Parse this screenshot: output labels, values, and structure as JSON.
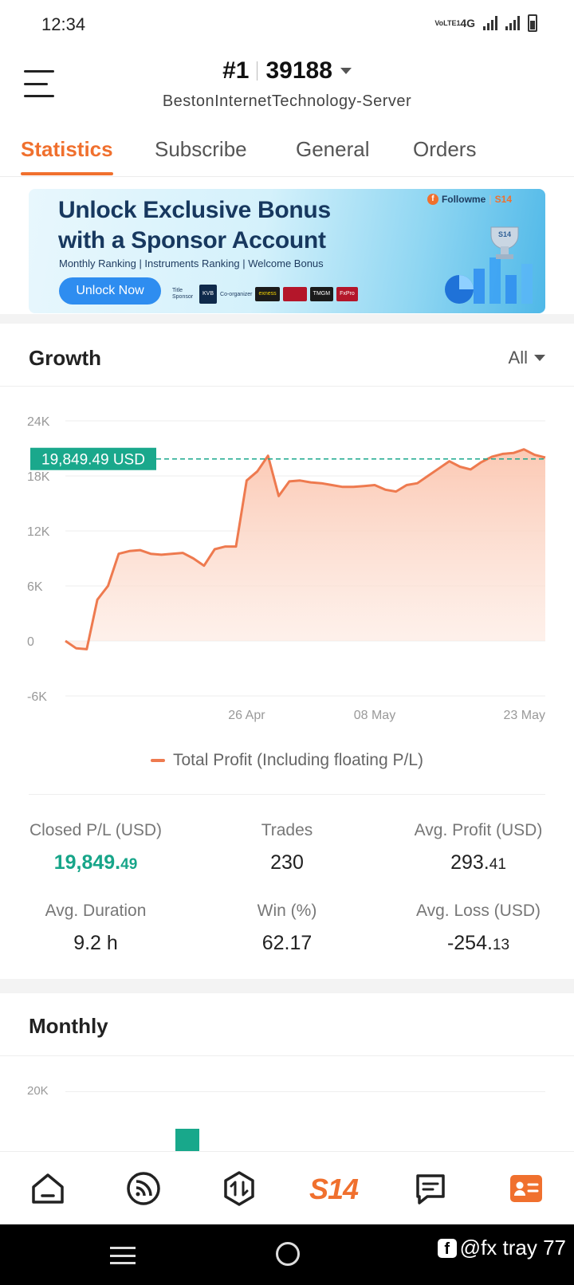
{
  "status_bar": {
    "time": "12:34",
    "network_label": "4G",
    "volte_label": "VoLTE1"
  },
  "header": {
    "account_rank": "#1",
    "account_id": "39188",
    "server": "BestonInternetTechnology-Server"
  },
  "tabs": [
    {
      "label": "Statistics",
      "active": true
    },
    {
      "label": "Subscribe",
      "active": false
    },
    {
      "label": "General",
      "active": false
    },
    {
      "label": "Orders",
      "active": false
    }
  ],
  "banner": {
    "headline_line1": "Unlock Exclusive Bonus",
    "headline_line2": "with a Sponsor Account",
    "subtitle": "Monthly Ranking | Instruments Ranking | Welcome Bonus",
    "button_label": "Unlock Now",
    "brand": "Followme",
    "brand_badge": "S14",
    "sponsor_title": "Title Sponsor",
    "sponsor_kvb": "KVB",
    "co_organizer": "Co-organizer",
    "sponsor_exness": "exness",
    "sponsor_tmgm": "TMGM",
    "sponsor_fxpro": "FxPro"
  },
  "growth": {
    "title": "Growth",
    "range_label": "All",
    "legend_label": "Total Profit (Including floating P/L)",
    "current_value_label": "19,849.49 USD"
  },
  "chart_data": {
    "type": "area",
    "title": "Growth",
    "series": [
      {
        "name": "Total Profit (Including floating P/L)",
        "x": [
          "09 Apr",
          "10 Apr",
          "11 Apr",
          "12 Apr",
          "13 Apr",
          "14 Apr",
          "15 Apr",
          "16 Apr",
          "17 Apr",
          "18 Apr",
          "19 Apr",
          "20 Apr",
          "21 Apr",
          "22 Apr",
          "23 Apr",
          "24 Apr",
          "25 Apr",
          "26 Apr",
          "27 Apr",
          "28 Apr",
          "29 Apr",
          "30 Apr",
          "01 May",
          "02 May",
          "03 May",
          "04 May",
          "05 May",
          "06 May",
          "07 May",
          "08 May",
          "09 May",
          "10 May",
          "11 May",
          "12 May",
          "13 May",
          "14 May",
          "15 May",
          "16 May",
          "17 May",
          "18 May",
          "19 May",
          "20 May",
          "21 May",
          "22 May",
          "23 May",
          "24 May"
        ],
        "values": [
          0,
          -800,
          -900,
          4500,
          6000,
          9500,
          9800,
          9900,
          9500,
          9400,
          9500,
          9600,
          9000,
          8200,
          10000,
          10300,
          10300,
          17500,
          18500,
          20200,
          15800,
          17400,
          17500,
          17300,
          17200,
          17000,
          16800,
          16800,
          16900,
          17000,
          16500,
          16300,
          17000,
          17200,
          18000,
          18800,
          19600,
          19000,
          18700,
          19500,
          20100,
          20400,
          20500,
          20900,
          20300,
          20000
        ]
      }
    ],
    "x_ticks": [
      "26 Apr",
      "08 May",
      "23 May"
    ],
    "y_ticks": [
      "24K",
      "18K",
      "12K",
      "6K",
      "0",
      "-6K"
    ],
    "ylim": [
      -6000,
      24000
    ],
    "reference_line": {
      "value": 19849.49,
      "label": "19,849.49 USD"
    },
    "grid": true
  },
  "stats": {
    "closed_pl": {
      "label": "Closed P/L (USD)",
      "int": "19,849.",
      "dec": "49"
    },
    "trades": {
      "label": "Trades",
      "value": "230"
    },
    "avg_profit": {
      "label": "Avg. Profit (USD)",
      "int": "293.",
      "dec": "41"
    },
    "avg_duration": {
      "label": "Avg. Duration",
      "value": "9.2 h"
    },
    "win_pct": {
      "label": "Win (%)",
      "value": "62.17"
    },
    "avg_loss": {
      "label": "Avg. Loss (USD)",
      "int": "-254.",
      "dec": "13"
    }
  },
  "monthly": {
    "title": "Monthly",
    "y_tick": "20K"
  },
  "bottom_nav": {
    "items": [
      "home-icon",
      "feed-icon",
      "trade-icon",
      "s14-icon",
      "messages-icon",
      "profile-card-icon"
    ],
    "s14_label": "S14",
    "active": "profile-card-icon"
  },
  "watermark": {
    "text": "@fx tray 77"
  },
  "colors": {
    "accent": "#f0702e",
    "profit_green": "#17a589",
    "chart_line": "#ee7a4f",
    "chart_fill": "#fcd3c0",
    "reference": "#1aa88c"
  }
}
